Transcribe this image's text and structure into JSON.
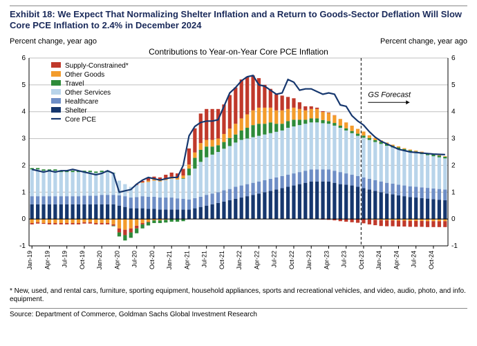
{
  "title": "Exhibit 18: We Expect That Normalizing Shelter Inflation and a Return to Goods-Sector Deflation Will Slow Core PCE Inflation to 2.4% in December 2024",
  "axis_label_left": "Percent change, year ago",
  "axis_label_right": "Percent change, year ago",
  "chart_title": "Contributions to Year-on-Year Core PCE Inflation",
  "footnote": "* New, used, and rental cars, furniture, sporting equipment, household appliances, sports and recreational vehicles, and video, audio, photo, and info. equipment.",
  "source": "Source: Department of Commerce, Goldman Sachs Global Investment Research",
  "forecast_label": "GS Forecast",
  "chart": {
    "type": "stacked-bar-with-line",
    "ylim": [
      -1,
      6
    ],
    "ytick_step": 1,
    "plot_bg": "#ffffff",
    "grid_color": "#bfbfbf",
    "axis_color": "#000000",
    "bar_width": 0.62,
    "forecast_start_index": 57,
    "categories": [
      "Jan-19",
      "Feb-19",
      "Mar-19",
      "Apr-19",
      "May-19",
      "Jun-19",
      "Jul-19",
      "Aug-19",
      "Sep-19",
      "Oct-19",
      "Nov-19",
      "Dec-19",
      "Jan-20",
      "Feb-20",
      "Mar-20",
      "Apr-20",
      "May-20",
      "Jun-20",
      "Jul-20",
      "Aug-20",
      "Sep-20",
      "Oct-20",
      "Nov-20",
      "Dec-20",
      "Jan-21",
      "Feb-21",
      "Mar-21",
      "Apr-21",
      "May-21",
      "Jun-21",
      "Jul-21",
      "Aug-21",
      "Sep-21",
      "Oct-21",
      "Nov-21",
      "Dec-21",
      "Jan-22",
      "Feb-22",
      "Mar-22",
      "Apr-22",
      "May-22",
      "Jun-22",
      "Jul-22",
      "Aug-22",
      "Sep-22",
      "Oct-22",
      "Nov-22",
      "Dec-22",
      "Jan-23",
      "Feb-23",
      "Mar-23",
      "Apr-23",
      "May-23",
      "Jun-23",
      "Jul-23",
      "Aug-23",
      "Sep-23",
      "Oct-23",
      "Nov-23",
      "Dec-23",
      "Jan-24",
      "Feb-24",
      "Mar-24",
      "Apr-24",
      "May-24",
      "Jun-24",
      "Jul-24",
      "Aug-24",
      "Sep-24",
      "Oct-24",
      "Nov-24",
      "Dec-24"
    ],
    "xtick_labels": [
      "Jan-19",
      "Apr-19",
      "Jul-19",
      "Oct-19",
      "Jan-20",
      "Apr-20",
      "Jul-20",
      "Oct-20",
      "Jan-21",
      "Apr-21",
      "Jul-21",
      "Oct-21",
      "Jan-22",
      "Apr-22",
      "Jul-22",
      "Oct-22",
      "Jan-23",
      "Apr-23",
      "Jul-23",
      "Oct-23",
      "Jan-24",
      "Apr-24",
      "Jul-24",
      "Oct-24"
    ],
    "xtick_indices": [
      0,
      3,
      6,
      9,
      12,
      15,
      18,
      21,
      24,
      27,
      30,
      33,
      36,
      39,
      42,
      45,
      48,
      51,
      54,
      57,
      60,
      63,
      66,
      69
    ],
    "series": [
      {
        "name": "Shelter",
        "color": "#16376e",
        "values": [
          0.55,
          0.55,
          0.55,
          0.55,
          0.55,
          0.55,
          0.55,
          0.55,
          0.55,
          0.55,
          0.55,
          0.55,
          0.55,
          0.55,
          0.55,
          0.5,
          0.45,
          0.4,
          0.4,
          0.4,
          0.38,
          0.38,
          0.35,
          0.35,
          0.35,
          0.35,
          0.35,
          0.35,
          0.4,
          0.45,
          0.5,
          0.55,
          0.6,
          0.65,
          0.7,
          0.75,
          0.8,
          0.85,
          0.9,
          0.95,
          1.0,
          1.05,
          1.1,
          1.15,
          1.2,
          1.25,
          1.3,
          1.35,
          1.4,
          1.4,
          1.4,
          1.4,
          1.35,
          1.3,
          1.28,
          1.25,
          1.2,
          1.15,
          1.1,
          1.05,
          1.0,
          0.95,
          0.92,
          0.88,
          0.85,
          0.82,
          0.8,
          0.78,
          0.76,
          0.74,
          0.72,
          0.7
        ]
      },
      {
        "name": "Healthcare",
        "color": "#6e8ec6",
        "values": [
          0.3,
          0.3,
          0.3,
          0.3,
          0.3,
          0.3,
          0.3,
          0.3,
          0.3,
          0.32,
          0.32,
          0.32,
          0.35,
          0.35,
          0.35,
          0.38,
          0.4,
          0.4,
          0.42,
          0.45,
          0.45,
          0.45,
          0.45,
          0.45,
          0.45,
          0.42,
          0.4,
          0.38,
          0.38,
          0.38,
          0.4,
          0.4,
          0.4,
          0.42,
          0.42,
          0.45,
          0.45,
          0.45,
          0.45,
          0.45,
          0.45,
          0.45,
          0.45,
          0.45,
          0.45,
          0.45,
          0.45,
          0.45,
          0.45,
          0.45,
          0.45,
          0.45,
          0.45,
          0.45,
          0.42,
          0.4,
          0.4,
          0.4,
          0.4,
          0.4,
          0.4,
          0.4,
          0.4,
          0.4,
          0.4,
          0.4,
          0.4,
          0.4,
          0.4,
          0.4,
          0.4,
          0.4
        ]
      },
      {
        "name": "Other Services",
        "color": "#b8d4ea",
        "values": [
          1.0,
          1.0,
          0.95,
          0.95,
          0.95,
          0.9,
          0.9,
          0.9,
          0.9,
          0.88,
          0.88,
          0.85,
          0.85,
          0.85,
          0.8,
          0.55,
          0.45,
          0.4,
          0.45,
          0.5,
          0.55,
          0.6,
          0.6,
          0.65,
          0.7,
          0.7,
          0.75,
          0.9,
          1.1,
          1.3,
          1.4,
          1.45,
          1.5,
          1.55,
          1.6,
          1.65,
          1.7,
          1.7,
          1.7,
          1.7,
          1.7,
          1.7,
          1.7,
          1.7,
          1.75,
          1.75,
          1.75,
          1.75,
          1.75,
          1.75,
          1.72,
          1.7,
          1.68,
          1.65,
          1.6,
          1.55,
          1.5,
          1.48,
          1.45,
          1.42,
          1.4,
          1.38,
          1.35,
          1.33,
          1.3,
          1.28,
          1.26,
          1.24,
          1.22,
          1.2,
          1.18,
          1.16
        ]
      },
      {
        "name": "Travel",
        "color": "#2e8b3a",
        "values": [
          0.05,
          0.05,
          0.05,
          0.05,
          0.05,
          0.05,
          0.05,
          0.05,
          0.05,
          0.05,
          0.05,
          0.05,
          0.05,
          0.05,
          0.02,
          0.0,
          0.0,
          0.0,
          0.0,
          0.0,
          0.0,
          0.0,
          0.0,
          0.0,
          0.0,
          0.0,
          0.02,
          0.25,
          0.4,
          0.45,
          0.4,
          0.3,
          0.25,
          0.25,
          0.3,
          0.3,
          0.35,
          0.4,
          0.45,
          0.45,
          0.4,
          0.4,
          0.3,
          0.25,
          0.25,
          0.25,
          0.2,
          0.15,
          0.15,
          0.15,
          0.12,
          0.1,
          0.1,
          0.08,
          0.08,
          0.08,
          0.08,
          0.08,
          0.07,
          0.07,
          0.07,
          0.07,
          0.06,
          0.06,
          0.06,
          0.06,
          0.06,
          0.06,
          0.06,
          0.06,
          0.06,
          0.06
        ]
      },
      {
        "name": "Other Goods",
        "color": "#f39c2c",
        "values": [
          0.0,
          0.0,
          0.0,
          0.0,
          0.0,
          0.0,
          0.0,
          0.0,
          0.0,
          0.0,
          0.0,
          0.0,
          0.0,
          0.0,
          0.0,
          0.0,
          0.0,
          0.0,
          0.0,
          0.02,
          0.05,
          0.05,
          0.05,
          0.05,
          0.08,
          0.08,
          0.1,
          0.15,
          0.2,
          0.25,
          0.25,
          0.25,
          0.25,
          0.3,
          0.35,
          0.4,
          0.45,
          0.5,
          0.55,
          0.6,
          0.6,
          0.55,
          0.5,
          0.5,
          0.45,
          0.45,
          0.4,
          0.35,
          0.35,
          0.35,
          0.3,
          0.3,
          0.28,
          0.25,
          0.22,
          0.2,
          0.18,
          0.15,
          0.1,
          0.08,
          0.06,
          0.05,
          0.04,
          0.04,
          0.03,
          0.03,
          0.03,
          0.03,
          0.02,
          0.02,
          0.02,
          0.02
        ]
      },
      {
        "name": "Supply-Constrained*",
        "color": "#c0392b",
        "values": [
          0.0,
          0.0,
          0.0,
          0.0,
          0.0,
          0.0,
          0.0,
          0.0,
          0.0,
          0.0,
          0.0,
          0.0,
          0.0,
          0.0,
          0.0,
          0.0,
          0.0,
          0.0,
          0.02,
          0.05,
          0.1,
          0.1,
          0.1,
          0.15,
          0.15,
          0.15,
          0.25,
          0.6,
          0.9,
          1.1,
          1.15,
          1.15,
          1.1,
          1.1,
          1.25,
          1.35,
          1.45,
          1.4,
          1.3,
          1.1,
          0.85,
          0.7,
          0.6,
          0.55,
          0.45,
          0.35,
          0.25,
          0.15,
          0.1,
          0.05,
          0.03,
          0.02,
          0.01,
          0.0,
          0.0,
          0.0,
          0.0,
          0.0,
          0.0,
          0.0,
          0.0,
          0.0,
          0.0,
          0.0,
          0.0,
          0.0,
          0.0,
          0.0,
          0.0,
          0.0,
          0.0,
          0.0
        ]
      }
    ],
    "neg_series": [
      {
        "name": "Other Goods neg",
        "color": "#f39c2c",
        "values": [
          -0.15,
          -0.12,
          -0.15,
          -0.15,
          -0.15,
          -0.15,
          -0.15,
          -0.15,
          -0.15,
          -0.12,
          -0.12,
          -0.15,
          -0.15,
          -0.15,
          -0.2,
          -0.35,
          -0.4,
          -0.35,
          -0.25,
          -0.15,
          -0.1,
          -0.05,
          -0.05,
          -0.03,
          0.0,
          0.0,
          0.0,
          0.0,
          0.0,
          0.0,
          0.0,
          0.0,
          0.0,
          0.0,
          0.0,
          0.0,
          0.0,
          0.0,
          0.0,
          0.0,
          0.0,
          0.0,
          0.0,
          0.0,
          0.0,
          0.0,
          0.0,
          0.0,
          0.0,
          0.0,
          0.0,
          0.0,
          0.0,
          0.0,
          0.0,
          0.0,
          0.0,
          0.0,
          -0.02,
          -0.03,
          -0.04,
          -0.05,
          -0.05,
          -0.06,
          -0.06,
          -0.07,
          -0.07,
          -0.07,
          -0.08,
          -0.08,
          -0.08,
          -0.08
        ]
      },
      {
        "name": "Supply-Constrained neg",
        "color": "#c0392b",
        "values": [
          -0.05,
          -0.05,
          -0.03,
          -0.05,
          -0.05,
          -0.05,
          -0.05,
          -0.05,
          -0.05,
          -0.05,
          -0.05,
          -0.05,
          -0.05,
          -0.05,
          -0.05,
          -0.15,
          -0.2,
          -0.15,
          -0.1,
          -0.05,
          -0.02,
          0.0,
          0.0,
          0.0,
          0.0,
          0.0,
          0.0,
          0.0,
          0.0,
          0.0,
          0.0,
          0.0,
          0.0,
          0.0,
          0.0,
          0.0,
          0.0,
          0.0,
          0.0,
          0.0,
          0.0,
          0.0,
          0.0,
          0.0,
          0.0,
          0.0,
          0.0,
          0.0,
          0.0,
          0.0,
          -0.02,
          -0.03,
          -0.05,
          -0.08,
          -0.1,
          -0.12,
          -0.14,
          -0.16,
          -0.18,
          -0.2,
          -0.22,
          -0.22,
          -0.22,
          -0.22,
          -0.22,
          -0.22,
          -0.22,
          -0.22,
          -0.22,
          -0.22,
          -0.22,
          -0.22
        ]
      },
      {
        "name": "Travel neg",
        "color": "#2e8b3a",
        "values": [
          0.0,
          0.0,
          0.0,
          0.0,
          0.0,
          0.0,
          0.0,
          0.0,
          0.0,
          0.0,
          0.0,
          0.0,
          0.0,
          0.0,
          -0.02,
          -0.15,
          -0.2,
          -0.2,
          -0.18,
          -0.15,
          -0.12,
          -0.1,
          -0.1,
          -0.1,
          -0.1,
          -0.1,
          -0.08,
          0.0,
          0.0,
          0.0,
          0.0,
          0.0,
          0.0,
          0.0,
          0.0,
          0.0,
          0.0,
          0.0,
          0.0,
          0.0,
          0.0,
          0.0,
          0.0,
          0.0,
          0.0,
          0.0,
          0.0,
          0.0,
          0.0,
          0.0,
          0.0,
          0.0,
          0.0,
          0.0,
          0.0,
          0.0,
          0.0,
          0.0,
          0.0,
          0.0,
          0.0,
          0.0,
          0.0,
          0.0,
          0.0,
          0.0,
          0.0,
          0.0,
          0.0,
          0.0,
          0.0,
          0.0
        ]
      }
    ],
    "line": {
      "name": "Core PCE",
      "color": "#16376e",
      "width": 2.2,
      "values": [
        1.85,
        1.8,
        1.75,
        1.8,
        1.75,
        1.8,
        1.8,
        1.85,
        1.8,
        1.75,
        1.7,
        1.65,
        1.7,
        1.8,
        1.7,
        1.0,
        1.05,
        1.1,
        1.3,
        1.45,
        1.55,
        1.5,
        1.45,
        1.5,
        1.55,
        1.55,
        2.0,
        3.1,
        3.45,
        3.6,
        3.65,
        3.65,
        3.7,
        4.2,
        4.7,
        4.9,
        5.15,
        5.3,
        5.35,
        5.0,
        4.95,
        4.8,
        4.65,
        4.7,
        5.2,
        5.1,
        4.8,
        4.85,
        4.85,
        4.75,
        4.65,
        4.7,
        4.65,
        4.25,
        4.2,
        3.85,
        3.65,
        3.5,
        3.25,
        3.05,
        2.9,
        2.8,
        2.7,
        2.6,
        2.55,
        2.5,
        2.48,
        2.46,
        2.44,
        2.42,
        2.41,
        2.4
      ]
    },
    "legend": [
      {
        "label": "Supply-Constrained*",
        "color": "#c0392b",
        "type": "box"
      },
      {
        "label": "Other Goods",
        "color": "#f39c2c",
        "type": "box"
      },
      {
        "label": "Travel",
        "color": "#2e8b3a",
        "type": "box"
      },
      {
        "label": "Other Services",
        "color": "#b8d4ea",
        "type": "box"
      },
      {
        "label": "Healthcare",
        "color": "#6e8ec6",
        "type": "box"
      },
      {
        "label": "Shelter",
        "color": "#16376e",
        "type": "box"
      },
      {
        "label": "Core PCE",
        "color": "#16376e",
        "type": "line"
      }
    ]
  }
}
